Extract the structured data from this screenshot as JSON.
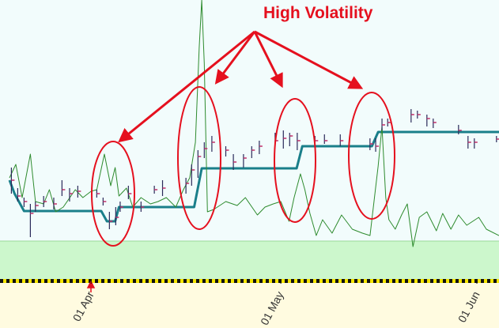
{
  "chart_data": {
    "type": "stock",
    "annotation": "High Volatility",
    "xlim": [
      -14.4,
      64.5
    ],
    "xticks": [
      {
        "value": 0,
        "label": "01 Apr"
      },
      {
        "value": 30,
        "label": "01 May"
      },
      {
        "value": 61,
        "label": "01 Jun"
      }
    ],
    "ylim": [
      0,
      355
    ],
    "ohlc": {
      "color": "#2a2a5a",
      "close_color": "#c0306a",
      "x": [
        -12.6,
        -11.6,
        -10.6,
        -9.6,
        -8.8,
        -7.5,
        -5.9,
        -4.6,
        -3.4,
        -2.1,
        0.9,
        1.9,
        2.9,
        3.9,
        4.6,
        5.9,
        7.9,
        10,
        11.3,
        15,
        15.9,
        16.9,
        17.9,
        19.1,
        21.3,
        22.5,
        24.1,
        25.4,
        26.6,
        29.1,
        30.4,
        31.4,
        32.6,
        35.4,
        36.9,
        39.4,
        44.1,
        45,
        46,
        46.9,
        50.6,
        51.6,
        53.1,
        54.1,
        58.1,
        59.6,
        60.6,
        64.1
      ],
      "high": [
        143,
        117,
        105,
        97,
        100,
        107,
        105,
        127,
        117,
        120,
        115,
        105,
        87,
        93,
        100,
        120,
        100,
        120,
        127,
        130,
        147,
        165,
        175,
        183,
        170,
        160,
        160,
        170,
        177,
        187,
        190,
        187,
        187,
        183,
        185,
        185,
        180,
        180,
        205,
        205,
        217,
        215,
        210,
        205,
        197,
        183,
        180,
        183
      ],
      "low": [
        110,
        100,
        93,
        55,
        87,
        93,
        90,
        107,
        100,
        105,
        105,
        95,
        65,
        70,
        87,
        103,
        87,
        110,
        107,
        110,
        120,
        130,
        155,
        163,
        157,
        140,
        143,
        155,
        160,
        167,
        167,
        170,
        165,
        170,
        173,
        170,
        165,
        163,
        190,
        195,
        200,
        205,
        195,
        193,
        185,
        167,
        167,
        175
      ],
      "close": [
        127,
        107,
        100,
        85,
        95,
        100,
        97,
        115,
        110,
        113,
        110,
        100,
        75,
        80,
        93,
        110,
        93,
        115,
        117,
        123,
        140,
        157,
        167,
        175,
        165,
        150,
        155,
        165,
        170,
        177,
        180,
        183,
        177,
        177,
        177,
        177,
        173,
        170,
        197,
        200,
        210,
        210,
        205,
        200,
        190,
        175,
        175,
        179
      ]
    },
    "lines": [
      {
        "color": "#1a7f8a",
        "width": 3,
        "x": [
          -12.9,
          -12.1,
          -10.6,
          1.6,
          2.5,
          3.8,
          4.4,
          16.3,
          17.5,
          32.5,
          33.4,
          44.4,
          45.4,
          64.5
        ],
        "values": [
          127,
          110,
          88,
          88,
          75,
          75,
          93,
          93,
          142,
          142,
          170,
          170,
          188,
          188
        ]
      },
      {
        "color": "#2e8b2e",
        "width": 1,
        "x": [
          -12.9,
          -11.9,
          -10.9,
          -9.6,
          -8.8,
          -7.5,
          -6.6,
          -5.6,
          -4.4,
          -2.5,
          -1.3,
          0,
          0.9,
          2.1,
          3.1,
          3.8,
          4.4,
          5.6,
          6.6,
          7.9,
          9.4,
          10.6,
          11.9,
          13.4,
          14.6,
          15.6,
          16.5,
          17.1,
          17.5,
          17.9,
          18.4,
          19.4,
          21.3,
          23.1,
          24.4,
          26.3,
          27.5,
          28.8,
          30,
          31.3,
          32.1,
          33.1,
          33.8,
          34.6,
          35.6,
          36.6,
          38.1,
          39.6,
          41.3,
          42.9,
          44.1,
          45.4,
          46,
          46.6,
          47.1,
          48.1,
          49.1,
          50,
          50.9,
          51.9,
          53.1,
          54.6,
          55.6,
          56.9,
          58.1,
          59.4,
          61.3,
          62.5,
          64.5
        ],
        "values": [
          130,
          147,
          105,
          160,
          100,
          97,
          115,
          87,
          93,
          115,
          105,
          113,
          115,
          160,
          120,
          143,
          107,
          117,
          93,
          105,
          97,
          100,
          105,
          93,
          115,
          130,
          175,
          295,
          355,
          275,
          87,
          90,
          100,
          95,
          105,
          83,
          93,
          97,
          100,
          75,
          105,
          135,
          115,
          85,
          57,
          77,
          60,
          83,
          65,
          60,
          57,
          145,
          195,
          105,
          77,
          65,
          83,
          97,
          43,
          80,
          87,
          63,
          85,
          65,
          83,
          70,
          80,
          65,
          57
        ]
      }
    ]
  }
}
